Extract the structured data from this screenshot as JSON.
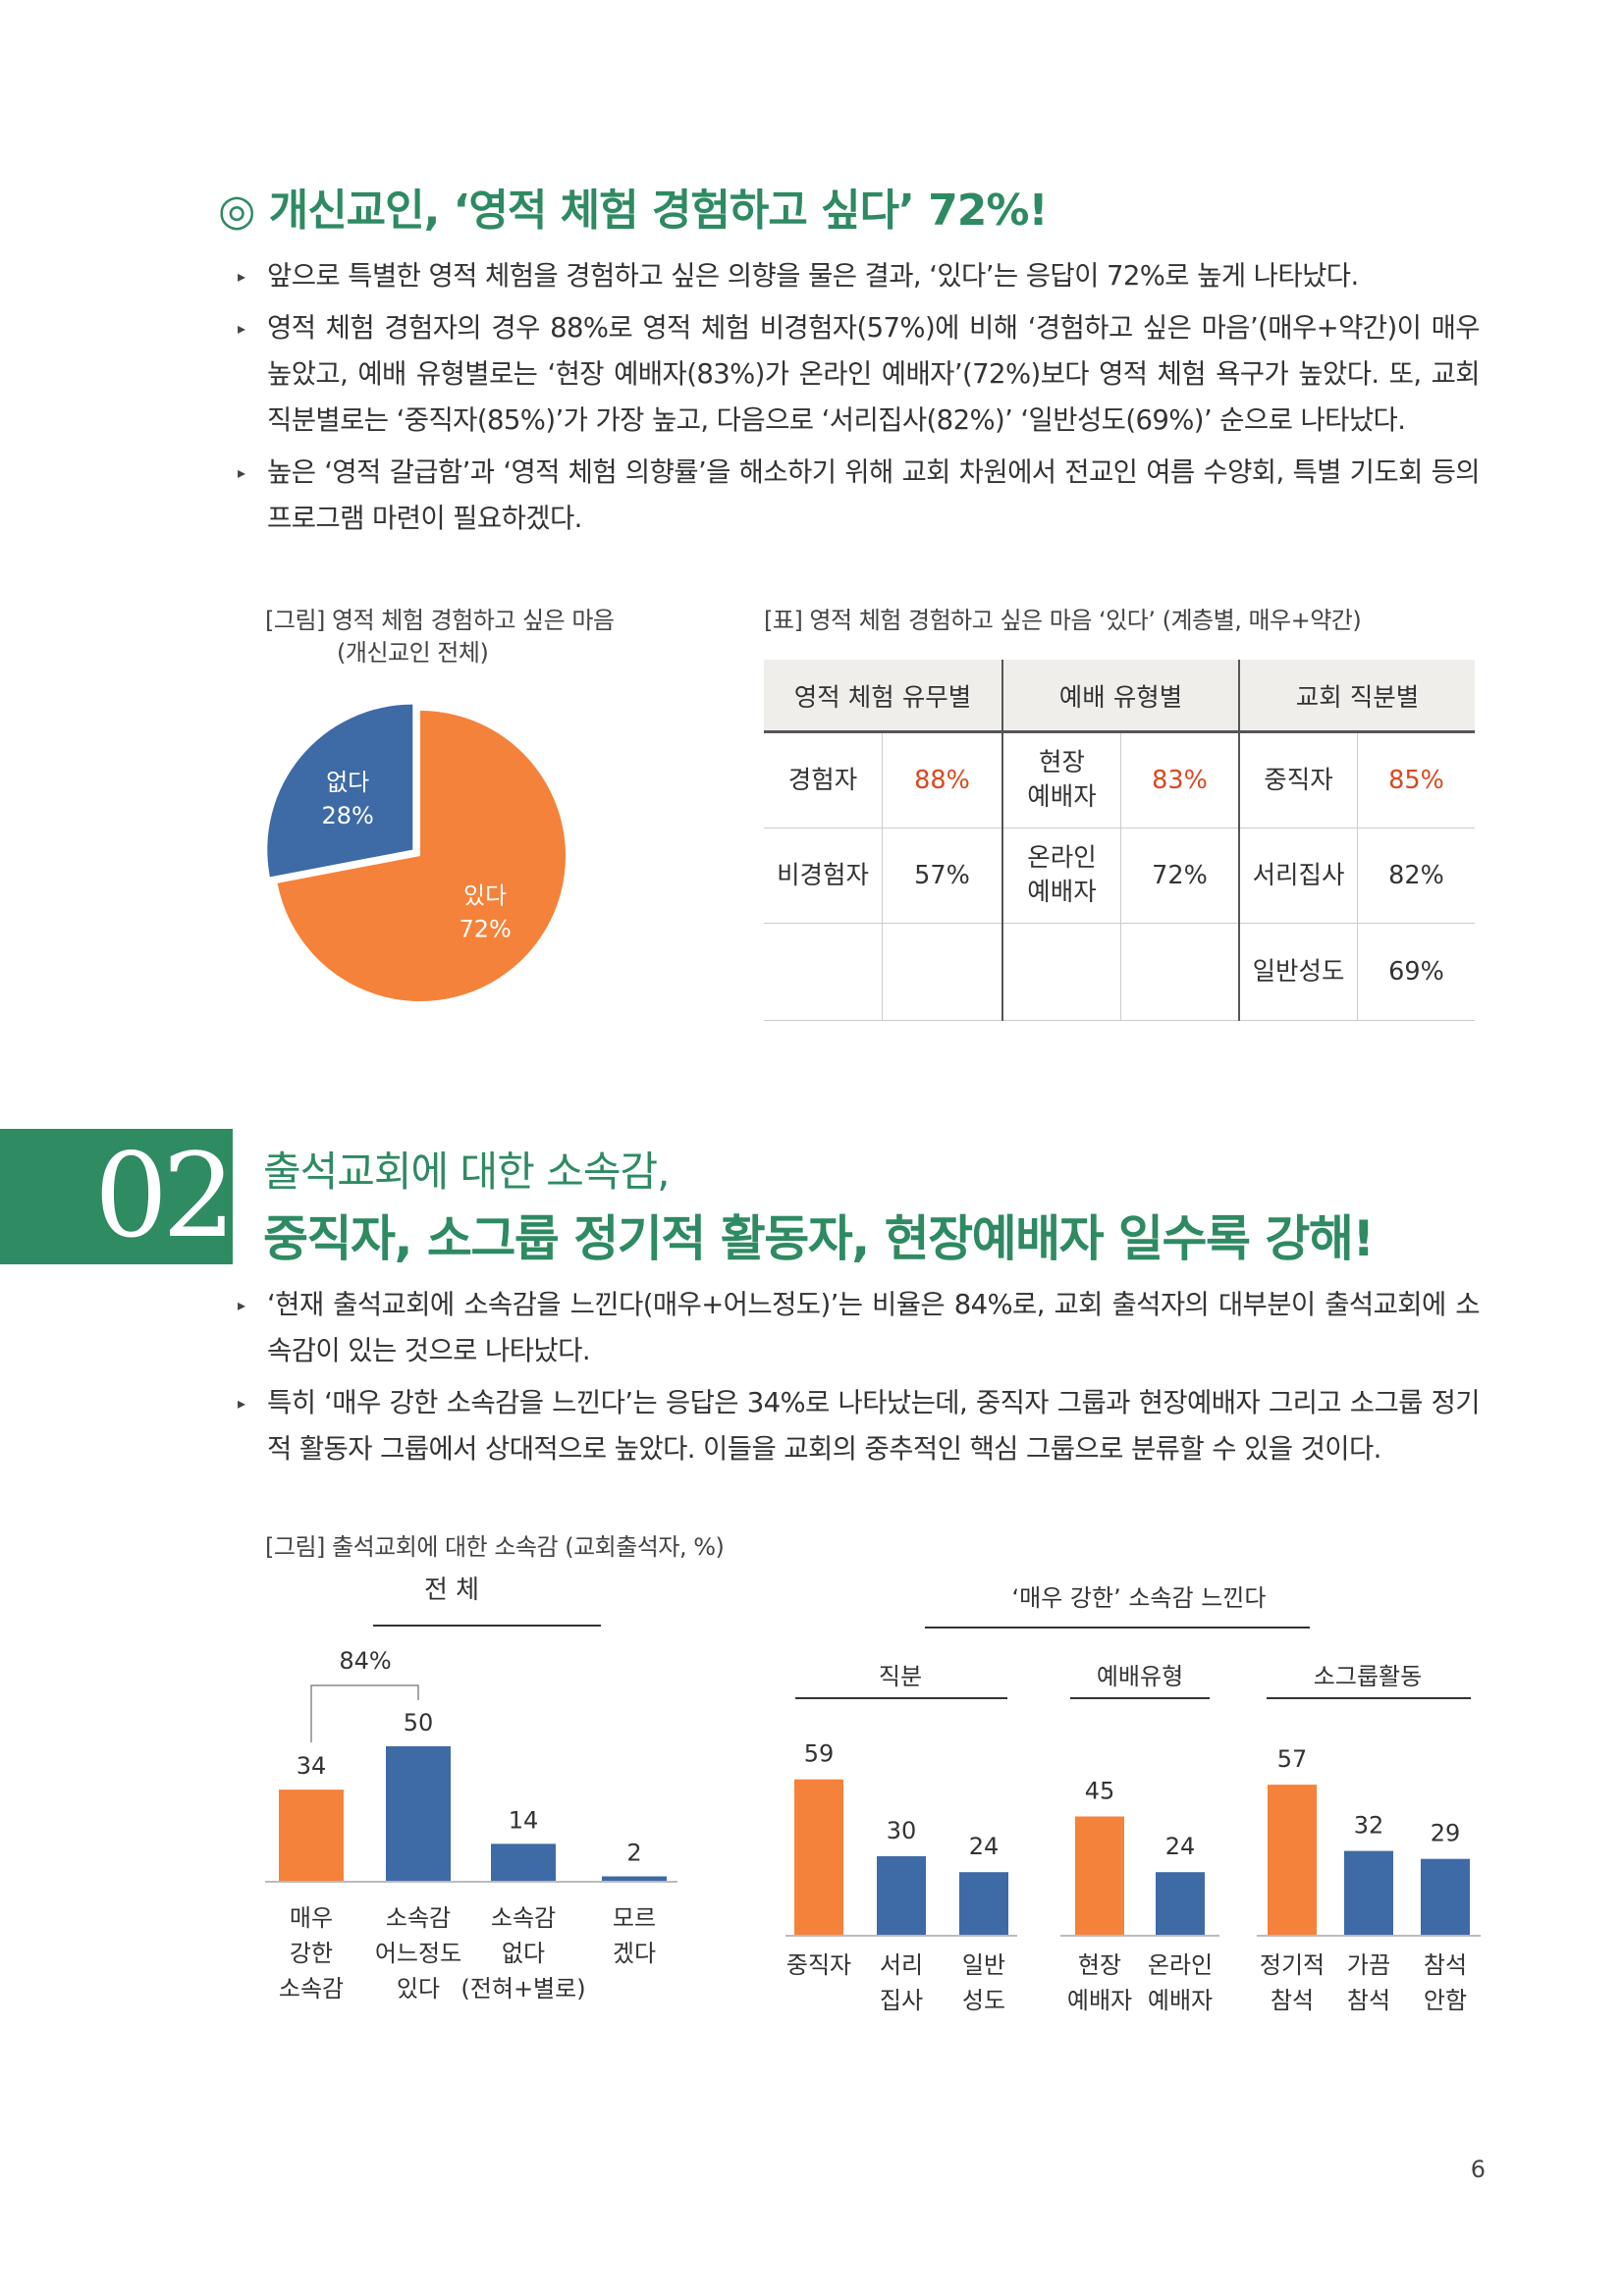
{
  "section1": {
    "heading": "◎ 개신교인, ‘영적 체험 경험하고 싶다’ 72%!",
    "bullets": [
      "앞으로 특별한 영적 체험을 경험하고 싶은 의향을 물은 결과, ‘있다’는 응답이 72%로 높게 나타났다.",
      "영적 체험 경험자의 경우 88%로 영적 체험 비경험자(57%)에 비해 ‘경험하고 싶은 마음’(매우+약간)이 매우 높았고, 예배 유형별로는 ‘현장 예배자(83%)가 온라인 예배자’(72%)보다 영적 체험 욕구가 높았다. 또, 교회 직분별로는 ‘중직자(85%)’가 가장 높고, 다음으로 ‘서리집사(82%)’ ‘일반성도(69%)’ 순으로 나타났다.",
      "높은 ‘영적 갈급함’과 ‘영적 체험 의향률’을 해소하기 위해 교회 차원에서 전교인 여름 수양회, 특별 기도회 등의 프로그램 마련이 필요하겠다."
    ],
    "pie_caption_line1": "[그림] 영적 체험 경험하고 싶은 마음",
    "pie_caption_line2": "(개신교인 전체)",
    "table_caption": "[표] 영적 체험 경험하고 싶은 마음 ‘있다’ (계층별, 매우+약간)",
    "table": {
      "headers": [
        "영적 체험 유무별",
        "예배 유형별",
        "교회 직분별"
      ],
      "rows": [
        [
          "경험자",
          "88%",
          "현장\n예배자",
          "83%",
          "중직자",
          "85%"
        ],
        [
          "비경험자",
          "57%",
          "온라인\n예배자",
          "72%",
          "서리집사",
          "82%"
        ],
        [
          "",
          "",
          "",
          "",
          "일반성도",
          "69%"
        ]
      ]
    }
  },
  "section2": {
    "number": "02",
    "subtitle": "출석교회에 대한 소속감,",
    "title": "중직자, 소그룹 정기적 활동자, 현장예배자 일수록 강해!",
    "bullets": [
      "‘현재 출석교회에 소속감을 느낀다(매우+어느정도)’는 비율은 84%로, 교회 출석자의 대부분이 출석교회에 소속감이 있는 것으로 나타났다.",
      "특히 ‘매우 강한 소속감을 느낀다’는 응답은 34%로 나타났는데, 중직자 그룹과 현장예배자 그리고 소그룹 정기적 활동자 그룹에서 상대적으로 높았다. 이들을 교회의 중추적인 핵심 그룹으로 분류할 수 있을 것이다."
    ],
    "figure_caption": "[그림] 출석교회에 대한 소속감 (교회출석자, %)"
  },
  "chart_data": [
    {
      "type": "pie",
      "labels": [
        "있다",
        "없다"
      ],
      "values": [
        72,
        28
      ],
      "value_labels": [
        "72%",
        "28%"
      ],
      "colors": [
        "#f5823a",
        "#3e6aa6"
      ]
    },
    {
      "type": "bar",
      "title": "전    체",
      "categories": [
        "매우\n강한\n소속감",
        "소속감\n어느정도\n있다",
        "소속감\n없다\n(전혀+별로)",
        "모르\n겠다"
      ],
      "values": [
        34,
        50,
        14,
        2
      ],
      "colors": [
        "#f5823a",
        "#3e6aa6",
        "#3e6aa6",
        "#3e6aa6"
      ],
      "bracket_label": "84%"
    },
    {
      "type": "bar",
      "title": "‘매우 강한’ 소속감 느낀다",
      "groups": [
        {
          "name": "직분",
          "categories": [
            "중직자",
            "서리\n집사",
            "일반\n성도"
          ],
          "values": [
            59,
            30,
            24
          ]
        },
        {
          "name": "예배유형",
          "categories": [
            "현장\n예배자",
            "온라인\n예배자"
          ],
          "values": [
            45,
            24
          ]
        },
        {
          "name": "소그룹활동",
          "categories": [
            "정기적\n참석",
            "가끔\n참석",
            "참석\n안함"
          ],
          "values": [
            57,
            32,
            29
          ]
        }
      ],
      "colors": {
        "highlight": "#f5823a",
        "default": "#3e6aa6"
      }
    }
  ],
  "footer": {
    "page_number": "6"
  }
}
